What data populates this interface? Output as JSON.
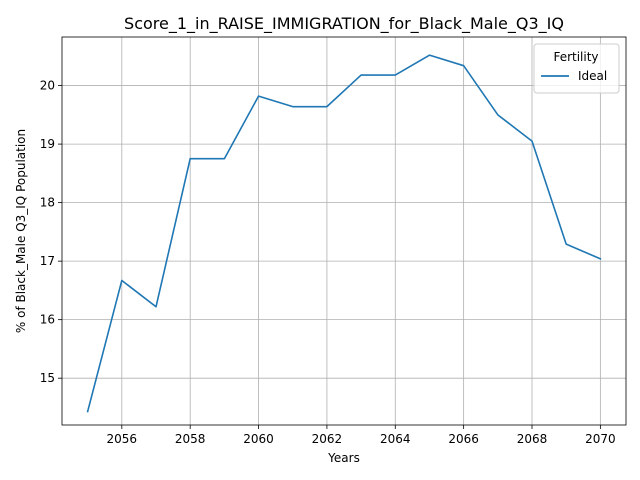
{
  "chart_data": {
    "type": "line",
    "title": "Score_1_in_RAISE_IMMIGRATION_for_Black_Male_Q3_IQ",
    "xlabel": "Years",
    "ylabel": "% of Black_Male Q3_IQ Population",
    "x": [
      2055,
      2056,
      2057,
      2058,
      2059,
      2060,
      2061,
      2062,
      2063,
      2064,
      2065,
      2066,
      2067,
      2068,
      2069,
      2070
    ],
    "xlim": [
      2054.25,
      2070.75
    ],
    "ylim": [
      14.2,
      20.83
    ],
    "xticks": [
      2056,
      2058,
      2060,
      2062,
      2064,
      2066,
      2068,
      2070
    ],
    "yticks": [
      15,
      16,
      17,
      18,
      19,
      20
    ],
    "grid": true,
    "legend": {
      "title": "Fertility",
      "placement": "upper-right"
    },
    "series": [
      {
        "name": "Ideal",
        "color": "#1f77b4",
        "values": [
          14.43,
          16.67,
          16.22,
          18.75,
          18.75,
          19.82,
          19.64,
          19.64,
          20.18,
          20.18,
          20.52,
          20.34,
          19.5,
          19.05,
          17.29,
          17.04
        ]
      }
    ]
  }
}
